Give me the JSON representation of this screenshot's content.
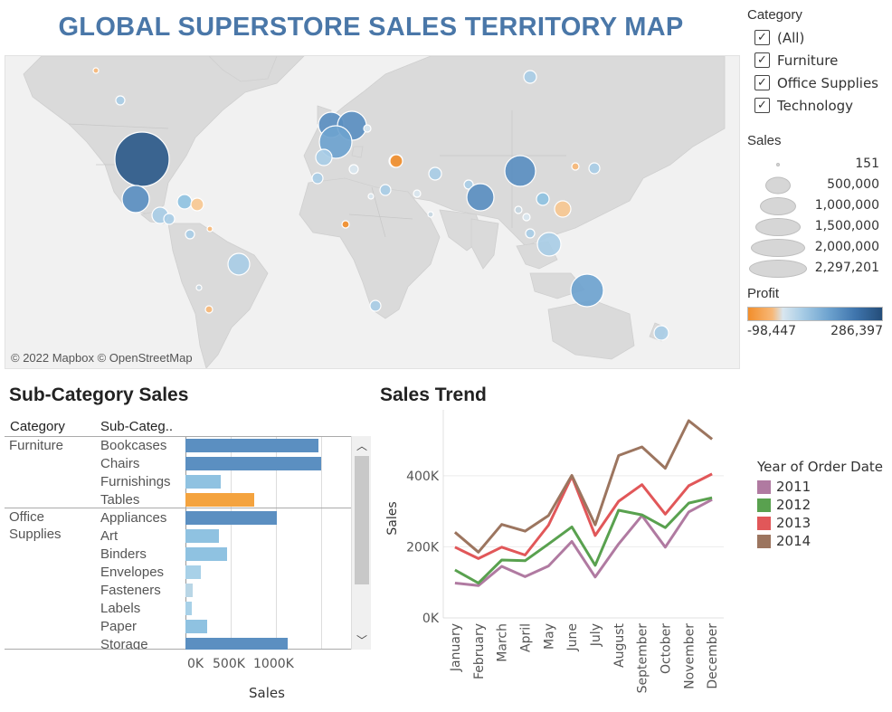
{
  "dashboard": {
    "title": "GLOBAL SUPERSTORE SALES TERRITORY MAP",
    "map_credit": "© 2022 Mapbox © OpenStreetMap"
  },
  "category_filter": {
    "title": "Category",
    "options": [
      {
        "label": "(All)",
        "checked": true
      },
      {
        "label": "Furniture",
        "checked": true
      },
      {
        "label": "Office Supplies",
        "checked": true
      },
      {
        "label": "Technology",
        "checked": true
      }
    ]
  },
  "sales_legend": {
    "title": "Sales",
    "values": [
      "151",
      "500,000",
      "1,000,000",
      "1,500,000",
      "2,000,000",
      "2,297,201"
    ]
  },
  "profit_legend": {
    "title": "Profit",
    "min": "-98,447",
    "max": "286,397",
    "colors": {
      "negative": "#f28e2b",
      "neutral": "#d9e6ef",
      "positive": "#244d79"
    }
  },
  "subcategory": {
    "title": "Sub-Category Sales",
    "col_category": "Category",
    "col_subcategory": "Sub-Categ..",
    "axis_ticks": [
      "0K",
      "500K",
      "1000K"
    ],
    "axis_title": "Sales",
    "groups": [
      {
        "category": "Furniture",
        "items": [
          {
            "name": "Bookcases",
            "sales": 1466000,
            "color": "#5b8fc1"
          },
          {
            "name": "Chairs",
            "sales": 1500000,
            "color": "#5b8fc1"
          },
          {
            "name": "Furnishings",
            "sales": 385000,
            "color": "#8fc2e1"
          },
          {
            "name": "Tables",
            "sales": 757000,
            "color": "#f4a33f"
          }
        ]
      },
      {
        "category": "Office\nSupplies",
        "items": [
          {
            "name": "Appliances",
            "sales": 1011000,
            "color": "#5b8fc1"
          },
          {
            "name": "Art",
            "sales": 372000,
            "color": "#8fc2e1"
          },
          {
            "name": "Binders",
            "sales": 462000,
            "color": "#8fc2e1"
          },
          {
            "name": "Envelopes",
            "sales": 170000,
            "color": "#a8d1e8"
          },
          {
            "name": "Fasteners",
            "sales": 84000,
            "color": "#b9d6e6"
          },
          {
            "name": "Labels",
            "sales": 73000,
            "color": "#a8d1e8"
          },
          {
            "name": "Paper",
            "sales": 244000,
            "color": "#8fc2e1"
          },
          {
            "name": "Storage",
            "sales": 1127000,
            "color": "#5b8fc1"
          }
        ]
      }
    ]
  },
  "sales_trend": {
    "title": "Sales Trend",
    "legend_title": "Year of Order Date",
    "chart_data": {
      "type": "line",
      "x": [
        "January",
        "February",
        "March",
        "April",
        "May",
        "June",
        "July",
        "August",
        "September",
        "October",
        "November",
        "December"
      ],
      "ylabel": "Sales",
      "yticks": [
        "0K",
        "200K",
        "400K"
      ],
      "ylim": [
        0,
        560000
      ],
      "series": [
        {
          "name": "2011",
          "color": "#b07aa1",
          "values": [
            98000,
            91000,
            145000,
            116000,
            146000,
            215000,
            115000,
            208000,
            288000,
            199000,
            298000,
            333000
          ]
        },
        {
          "name": "2012",
          "color": "#59a14f",
          "values": [
            135000,
            98000,
            163000,
            161000,
            208000,
            256000,
            148000,
            303000,
            290000,
            254000,
            323000,
            338000
          ]
        },
        {
          "name": "2013",
          "color": "#e15759",
          "values": [
            199000,
            167000,
            199000,
            177000,
            261000,
            398000,
            232000,
            328000,
            375000,
            292000,
            372000,
            405000
          ]
        },
        {
          "name": "2014",
          "color": "#9c755f",
          "values": [
            241000,
            185000,
            263000,
            244000,
            288000,
            401000,
            262000,
            457000,
            481000,
            421000,
            555000,
            503000
          ]
        }
      ]
    }
  }
}
